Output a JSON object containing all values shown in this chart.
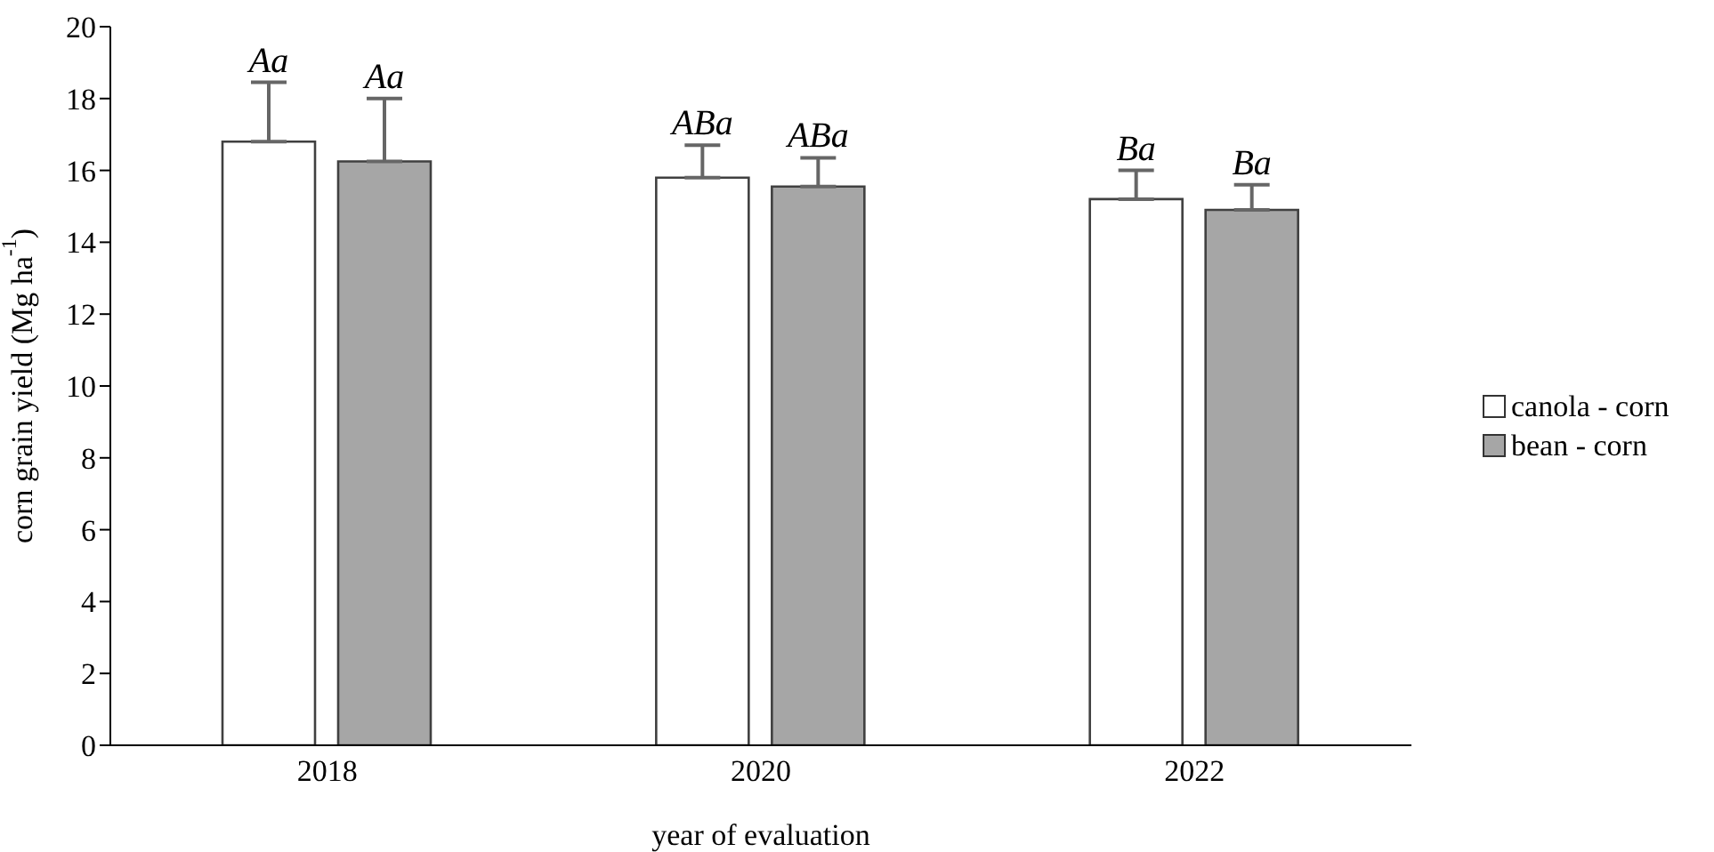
{
  "chart_data": {
    "type": "bar",
    "xlabel": "year of evaluation",
    "ylabel": "corn grain yield (Mg ha$^{-1}$)",
    "categories": [
      "2018",
      "2020",
      "2022"
    ],
    "series": [
      {
        "name": "canola - corn",
        "color": "#ffffff",
        "values": [
          16.8,
          15.8,
          15.2
        ],
        "errors": [
          [
            16.8,
            18.45
          ],
          [
            15.8,
            16.7
          ],
          [
            15.2,
            16.0
          ]
        ],
        "value_labels": [
          "Aa",
          "ABa",
          "Ba"
        ]
      },
      {
        "name": "bean - corn",
        "color": "#a6a6a6",
        "values": [
          16.25,
          15.55,
          14.9
        ],
        "errors": [
          [
            16.25,
            18.0
          ],
          [
            15.55,
            16.35
          ],
          [
            14.9,
            15.6
          ]
        ],
        "value_labels": [
          "Aa",
          "ABa",
          "Ba"
        ]
      }
    ],
    "ylim": [
      0,
      20
    ],
    "yticks": [
      0,
      2,
      4,
      6,
      8,
      10,
      12,
      14,
      16,
      18,
      20
    ],
    "grid": false,
    "legend": "right"
  }
}
